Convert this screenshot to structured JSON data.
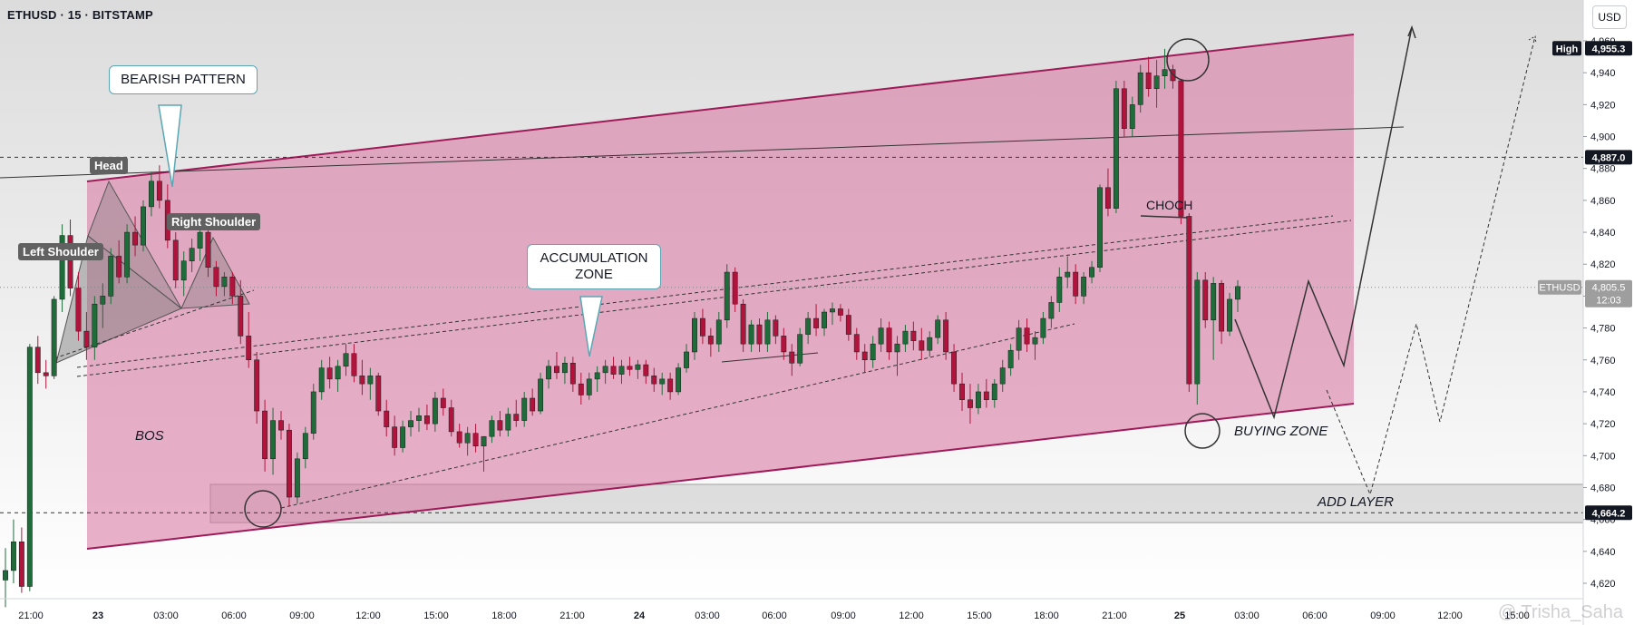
{
  "header": {
    "symbol_title": "ETHUSD · 15 · BITSTAMP",
    "currency_button": "USD"
  },
  "colors": {
    "channel_fill": "#d9729e",
    "channel_edge": "#9e1a58",
    "candle_up": "#1f6b3a",
    "candle_down": "#b0143c",
    "callout_border": "#5aa7b3",
    "label_bg": "#616161"
  },
  "annotations": {
    "bearish_pattern": "BEARISH PATTERN",
    "accumulation_zone_line1": "ACCUMULATION",
    "accumulation_zone_line2": "ZONE",
    "head": "Head",
    "left_shoulder": "Left Shoulder",
    "right_shoulder": "Right Shoulder",
    "bos": "BOS",
    "choch": "CHOCH",
    "buying_zone": "BUYING ZONE",
    "add_layer": "ADD LAYER"
  },
  "price_tags": {
    "high_label": "High",
    "high_value": "4,955.3",
    "level_4887": "4,887.0",
    "symbol": "ETHUSD",
    "last_price": "4,805.5",
    "countdown": "12:03",
    "level_4664": "4,664.2"
  },
  "watermark": "@ Trisha_Saha",
  "chart_data": {
    "type": "candlestick",
    "title": "ETHUSD · 15 · BITSTAMP",
    "ylim": [
      4610,
      4970
    ],
    "y_ticks": [
      4620,
      4640,
      4660,
      4680,
      4700,
      4720,
      4740,
      4760,
      4780,
      4800,
      4820,
      4840,
      4860,
      4880,
      4900,
      4920,
      4940,
      4960
    ],
    "y_tick_labels": [
      "4,620",
      "4,640",
      "4,660",
      "4,680",
      "4,700",
      "4,720",
      "4,740",
      "4,760",
      "4,780",
      "4,800",
      "4,820",
      "4,840",
      "4,860",
      "4,880",
      "4,900",
      "4,920",
      "4,940",
      "4,960"
    ],
    "x_tick_labels": [
      "21:00",
      "23",
      "03:00",
      "06:00",
      "09:00",
      "12:00",
      "15:00",
      "18:00",
      "21:00",
      "24",
      "03:00",
      "06:00",
      "09:00",
      "12:00",
      "15:00",
      "18:00",
      "21:00",
      "25",
      "03:00",
      "06:00",
      "09:00",
      "12:00",
      "15:00"
    ],
    "candles": [
      {
        "o": 4622,
        "h": 4642,
        "l": 4605,
        "c": 4628
      },
      {
        "o": 4628,
        "h": 4660,
        "l": 4620,
        "c": 4646
      },
      {
        "o": 4646,
        "h": 4655,
        "l": 4614,
        "c": 4618
      },
      {
        "o": 4618,
        "h": 4770,
        "l": 4615,
        "c": 4768
      },
      {
        "o": 4768,
        "h": 4775,
        "l": 4745,
        "c": 4752
      },
      {
        "o": 4752,
        "h": 4760,
        "l": 4742,
        "c": 4750
      },
      {
        "o": 4750,
        "h": 4800,
        "l": 4748,
        "c": 4798
      },
      {
        "o": 4798,
        "h": 4845,
        "l": 4790,
        "c": 4838
      },
      {
        "o": 4838,
        "h": 4848,
        "l": 4800,
        "c": 4805
      },
      {
        "o": 4805,
        "h": 4815,
        "l": 4772,
        "c": 4778
      },
      {
        "o": 4778,
        "h": 4790,
        "l": 4760,
        "c": 4768
      },
      {
        "o": 4768,
        "h": 4800,
        "l": 4760,
        "c": 4795
      },
      {
        "o": 4795,
        "h": 4808,
        "l": 4780,
        "c": 4800
      },
      {
        "o": 4800,
        "h": 4830,
        "l": 4795,
        "c": 4825
      },
      {
        "o": 4825,
        "h": 4835,
        "l": 4808,
        "c": 4812
      },
      {
        "o": 4812,
        "h": 4845,
        "l": 4808,
        "c": 4840
      },
      {
        "o": 4840,
        "h": 4850,
        "l": 4825,
        "c": 4832
      },
      {
        "o": 4832,
        "h": 4860,
        "l": 4828,
        "c": 4856
      },
      {
        "o": 4856,
        "h": 4878,
        "l": 4850,
        "c": 4872
      },
      {
        "o": 4872,
        "h": 4882,
        "l": 4855,
        "c": 4860
      },
      {
        "o": 4860,
        "h": 4870,
        "l": 4830,
        "c": 4835
      },
      {
        "o": 4835,
        "h": 4840,
        "l": 4805,
        "c": 4810
      },
      {
        "o": 4810,
        "h": 4828,
        "l": 4800,
        "c": 4822
      },
      {
        "o": 4822,
        "h": 4836,
        "l": 4815,
        "c": 4830
      },
      {
        "o": 4830,
        "h": 4845,
        "l": 4822,
        "c": 4840
      },
      {
        "o": 4840,
        "h": 4842,
        "l": 4812,
        "c": 4818
      },
      {
        "o": 4818,
        "h": 4822,
        "l": 4800,
        "c": 4806
      },
      {
        "o": 4806,
        "h": 4815,
        "l": 4800,
        "c": 4812
      },
      {
        "o": 4812,
        "h": 4815,
        "l": 4795,
        "c": 4800
      },
      {
        "o": 4800,
        "h": 4810,
        "l": 4770,
        "c": 4775
      },
      {
        "o": 4775,
        "h": 4790,
        "l": 4755,
        "c": 4760
      },
      {
        "o": 4760,
        "h": 4765,
        "l": 4720,
        "c": 4728
      },
      {
        "o": 4728,
        "h": 4735,
        "l": 4690,
        "c": 4698
      },
      {
        "o": 4698,
        "h": 4730,
        "l": 4688,
        "c": 4722
      },
      {
        "o": 4722,
        "h": 4728,
        "l": 4710,
        "c": 4716
      },
      {
        "o": 4716,
        "h": 4720,
        "l": 4668,
        "c": 4674
      },
      {
        "o": 4674,
        "h": 4702,
        "l": 4670,
        "c": 4698
      },
      {
        "o": 4698,
        "h": 4718,
        "l": 4692,
        "c": 4714
      },
      {
        "o": 4714,
        "h": 4745,
        "l": 4710,
        "c": 4740
      },
      {
        "o": 4740,
        "h": 4760,
        "l": 4735,
        "c": 4755
      },
      {
        "o": 4755,
        "h": 4762,
        "l": 4742,
        "c": 4748
      },
      {
        "o": 4748,
        "h": 4760,
        "l": 4740,
        "c": 4756
      },
      {
        "o": 4756,
        "h": 4770,
        "l": 4750,
        "c": 4764
      },
      {
        "o": 4764,
        "h": 4770,
        "l": 4746,
        "c": 4750
      },
      {
        "o": 4750,
        "h": 4760,
        "l": 4738,
        "c": 4745
      },
      {
        "o": 4745,
        "h": 4755,
        "l": 4735,
        "c": 4750
      },
      {
        "o": 4750,
        "h": 4752,
        "l": 4725,
        "c": 4728
      },
      {
        "o": 4728,
        "h": 4735,
        "l": 4712,
        "c": 4718
      },
      {
        "o": 4718,
        "h": 4725,
        "l": 4700,
        "c": 4705
      },
      {
        "o": 4705,
        "h": 4722,
        "l": 4702,
        "c": 4718
      },
      {
        "o": 4718,
        "h": 4728,
        "l": 4712,
        "c": 4722
      },
      {
        "o": 4722,
        "h": 4730,
        "l": 4715,
        "c": 4725
      },
      {
        "o": 4725,
        "h": 4732,
        "l": 4716,
        "c": 4720
      },
      {
        "o": 4720,
        "h": 4740,
        "l": 4715,
        "c": 4736
      },
      {
        "o": 4736,
        "h": 4742,
        "l": 4725,
        "c": 4730
      },
      {
        "o": 4730,
        "h": 4735,
        "l": 4712,
        "c": 4715
      },
      {
        "o": 4715,
        "h": 4720,
        "l": 4705,
        "c": 4708
      },
      {
        "o": 4708,
        "h": 4718,
        "l": 4700,
        "c": 4714
      },
      {
        "o": 4714,
        "h": 4720,
        "l": 4702,
        "c": 4706
      },
      {
        "o": 4706,
        "h": 4712,
        "l": 4690,
        "c": 4712
      },
      {
        "o": 4712,
        "h": 4725,
        "l": 4708,
        "c": 4722
      },
      {
        "o": 4722,
        "h": 4728,
        "l": 4712,
        "c": 4716
      },
      {
        "o": 4716,
        "h": 4730,
        "l": 4712,
        "c": 4726
      },
      {
        "o": 4726,
        "h": 4735,
        "l": 4718,
        "c": 4722
      },
      {
        "o": 4722,
        "h": 4740,
        "l": 4718,
        "c": 4736
      },
      {
        "o": 4736,
        "h": 4742,
        "l": 4725,
        "c": 4728
      },
      {
        "o": 4728,
        "h": 4752,
        "l": 4726,
        "c": 4748
      },
      {
        "o": 4748,
        "h": 4760,
        "l": 4742,
        "c": 4756
      },
      {
        "o": 4756,
        "h": 4765,
        "l": 4748,
        "c": 4752
      },
      {
        "o": 4752,
        "h": 4762,
        "l": 4745,
        "c": 4758
      },
      {
        "o": 4758,
        "h": 4762,
        "l": 4740,
        "c": 4745
      },
      {
        "o": 4745,
        "h": 4752,
        "l": 4732,
        "c": 4738
      },
      {
        "o": 4738,
        "h": 4752,
        "l": 4735,
        "c": 4748
      },
      {
        "o": 4748,
        "h": 4756,
        "l": 4740,
        "c": 4752
      },
      {
        "o": 4752,
        "h": 4760,
        "l": 4745,
        "c": 4756
      },
      {
        "o": 4756,
        "h": 4762,
        "l": 4748,
        "c": 4751
      },
      {
        "o": 4751,
        "h": 4760,
        "l": 4745,
        "c": 4756
      },
      {
        "o": 4756,
        "h": 4762,
        "l": 4750,
        "c": 4754
      },
      {
        "o": 4754,
        "h": 4760,
        "l": 4748,
        "c": 4757
      },
      {
        "o": 4757,
        "h": 4760,
        "l": 4745,
        "c": 4750
      },
      {
        "o": 4750,
        "h": 4755,
        "l": 4740,
        "c": 4745
      },
      {
        "o": 4745,
        "h": 4752,
        "l": 4738,
        "c": 4748
      },
      {
        "o": 4748,
        "h": 4752,
        "l": 4735,
        "c": 4740
      },
      {
        "o": 4740,
        "h": 4758,
        "l": 4738,
        "c": 4755
      },
      {
        "o": 4755,
        "h": 4770,
        "l": 4752,
        "c": 4765
      },
      {
        "o": 4765,
        "h": 4790,
        "l": 4760,
        "c": 4786
      },
      {
        "o": 4786,
        "h": 4792,
        "l": 4770,
        "c": 4775
      },
      {
        "o": 4775,
        "h": 4780,
        "l": 4762,
        "c": 4770
      },
      {
        "o": 4770,
        "h": 4790,
        "l": 4765,
        "c": 4785
      },
      {
        "o": 4785,
        "h": 4820,
        "l": 4780,
        "c": 4815
      },
      {
        "o": 4815,
        "h": 4818,
        "l": 4790,
        "c": 4795
      },
      {
        "o": 4795,
        "h": 4798,
        "l": 4765,
        "c": 4770
      },
      {
        "o": 4770,
        "h": 4785,
        "l": 4765,
        "c": 4782
      },
      {
        "o": 4782,
        "h": 4786,
        "l": 4765,
        "c": 4770
      },
      {
        "o": 4770,
        "h": 4790,
        "l": 4765,
        "c": 4785
      },
      {
        "o": 4785,
        "h": 4788,
        "l": 4770,
        "c": 4775
      },
      {
        "o": 4775,
        "h": 4780,
        "l": 4760,
        "c": 4765
      },
      {
        "o": 4765,
        "h": 4770,
        "l": 4750,
        "c": 4758
      },
      {
        "o": 4758,
        "h": 4780,
        "l": 4756,
        "c": 4776
      },
      {
        "o": 4776,
        "h": 4790,
        "l": 4770,
        "c": 4786
      },
      {
        "o": 4786,
        "h": 4795,
        "l": 4775,
        "c": 4780
      },
      {
        "o": 4780,
        "h": 4792,
        "l": 4775,
        "c": 4790
      },
      {
        "o": 4790,
        "h": 4796,
        "l": 4782,
        "c": 4792
      },
      {
        "o": 4792,
        "h": 4795,
        "l": 4784,
        "c": 4788
      },
      {
        "o": 4788,
        "h": 4792,
        "l": 4772,
        "c": 4776
      },
      {
        "o": 4776,
        "h": 4780,
        "l": 4760,
        "c": 4765
      },
      {
        "o": 4765,
        "h": 4770,
        "l": 4752,
        "c": 4760
      },
      {
        "o": 4760,
        "h": 4775,
        "l": 4755,
        "c": 4770
      },
      {
        "o": 4770,
        "h": 4786,
        "l": 4765,
        "c": 4780
      },
      {
        "o": 4780,
        "h": 4784,
        "l": 4760,
        "c": 4765
      },
      {
        "o": 4765,
        "h": 4775,
        "l": 4750,
        "c": 4770
      },
      {
        "o": 4770,
        "h": 4782,
        "l": 4765,
        "c": 4778
      },
      {
        "o": 4778,
        "h": 4784,
        "l": 4766,
        "c": 4772
      },
      {
        "o": 4772,
        "h": 4780,
        "l": 4760,
        "c": 4766
      },
      {
        "o": 4766,
        "h": 4778,
        "l": 4762,
        "c": 4774
      },
      {
        "o": 4774,
        "h": 4788,
        "l": 4770,
        "c": 4785
      },
      {
        "o": 4785,
        "h": 4790,
        "l": 4760,
        "c": 4765
      },
      {
        "o": 4765,
        "h": 4770,
        "l": 4740,
        "c": 4745
      },
      {
        "o": 4745,
        "h": 4752,
        "l": 4728,
        "c": 4735
      },
      {
        "o": 4735,
        "h": 4745,
        "l": 4720,
        "c": 4730
      },
      {
        "o": 4730,
        "h": 4745,
        "l": 4726,
        "c": 4740
      },
      {
        "o": 4740,
        "h": 4748,
        "l": 4730,
        "c": 4735
      },
      {
        "o": 4735,
        "h": 4748,
        "l": 4730,
        "c": 4745
      },
      {
        "o": 4745,
        "h": 4760,
        "l": 4740,
        "c": 4755
      },
      {
        "o": 4755,
        "h": 4770,
        "l": 4750,
        "c": 4766
      },
      {
        "o": 4766,
        "h": 4785,
        "l": 4760,
        "c": 4780
      },
      {
        "o": 4780,
        "h": 4786,
        "l": 4765,
        "c": 4770
      },
      {
        "o": 4770,
        "h": 4778,
        "l": 4760,
        "c": 4774
      },
      {
        "o": 4774,
        "h": 4790,
        "l": 4770,
        "c": 4786
      },
      {
        "o": 4786,
        "h": 4800,
        "l": 4780,
        "c": 4796
      },
      {
        "o": 4796,
        "h": 4818,
        "l": 4790,
        "c": 4812
      },
      {
        "o": 4812,
        "h": 4825,
        "l": 4805,
        "c": 4815
      },
      {
        "o": 4815,
        "h": 4820,
        "l": 4795,
        "c": 4800
      },
      {
        "o": 4800,
        "h": 4815,
        "l": 4795,
        "c": 4812
      },
      {
        "o": 4812,
        "h": 4822,
        "l": 4808,
        "c": 4818
      },
      {
        "o": 4818,
        "h": 4870,
        "l": 4815,
        "c": 4868
      },
      {
        "o": 4868,
        "h": 4880,
        "l": 4850,
        "c": 4855
      },
      {
        "o": 4855,
        "h": 4935,
        "l": 4852,
        "c": 4930
      },
      {
        "o": 4930,
        "h": 4935,
        "l": 4900,
        "c": 4905
      },
      {
        "o": 4905,
        "h": 4925,
        "l": 4900,
        "c": 4920
      },
      {
        "o": 4920,
        "h": 4945,
        "l": 4915,
        "c": 4940
      },
      {
        "o": 4940,
        "h": 4950,
        "l": 4925,
        "c": 4930
      },
      {
        "o": 4930,
        "h": 4948,
        "l": 4918,
        "c": 4938
      },
      {
        "o": 4938,
        "h": 4955,
        "l": 4930,
        "c": 4942
      },
      {
        "o": 4942,
        "h": 4945,
        "l": 4930,
        "c": 4935
      },
      {
        "o": 4935,
        "h": 4936,
        "l": 4845,
        "c": 4850
      },
      {
        "o": 4850,
        "h": 4852,
        "l": 4740,
        "c": 4745
      },
      {
        "o": 4745,
        "h": 4815,
        "l": 4732,
        "c": 4810
      },
      {
        "o": 4810,
        "h": 4815,
        "l": 4780,
        "c": 4785
      },
      {
        "o": 4785,
        "h": 4812,
        "l": 4760,
        "c": 4808
      },
      {
        "o": 4808,
        "h": 4810,
        "l": 4770,
        "c": 4778
      },
      {
        "o": 4778,
        "h": 4802,
        "l": 4775,
        "c": 4798
      },
      {
        "o": 4798,
        "h": 4810,
        "l": 4790,
        "c": 4806
      }
    ]
  }
}
